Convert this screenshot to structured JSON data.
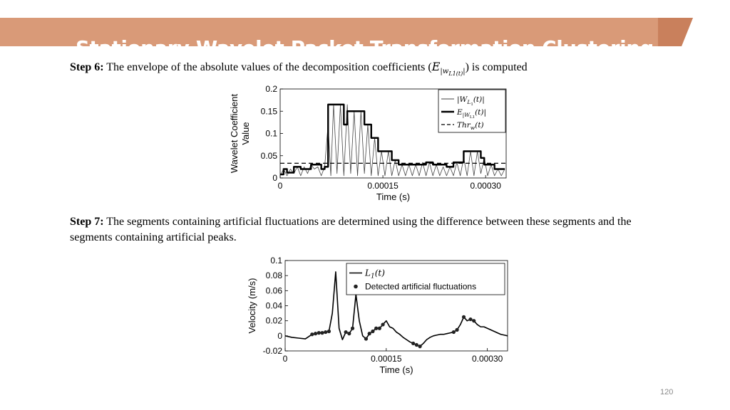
{
  "slide": {
    "title": "Stationary Wavelet Packet Transformation Clustering",
    "page_number": "120",
    "colors": {
      "banner": "#d99a78",
      "banner_dark": "#c9805c",
      "title_text": "#ffffff",
      "page_number": "#8a8a8a"
    }
  },
  "step6": {
    "label": "Step 6:",
    "text": " The envelope of the absolute values of the decomposition coefficients (",
    "symbol": "E",
    "subscript": "|w",
    "subsub": "L1(t)",
    "subscript_end": "|",
    "text_end": ") is computed"
  },
  "step7": {
    "label": "Step 7:",
    "text": " The segments containing artificial fluctuations are determined using the difference between these segments and the segments containing artificial peaks."
  },
  "chart_data": [
    {
      "type": "line",
      "ylabel": "Wavelet Coefficient Value",
      "xlabel": "Time (s)",
      "xlim": [
        0,
        0.00033
      ],
      "ylim": [
        0,
        0.2
      ],
      "xticks": [
        "0",
        "0.00015",
        "0.00030"
      ],
      "xtick_values": [
        0,
        0.00015,
        0.0003
      ],
      "yticks": [
        "0",
        "0.05",
        "0.1",
        "0.15",
        "0.2"
      ],
      "ytick_values": [
        0,
        0.05,
        0.1,
        0.15,
        0.2
      ],
      "legend_position": "top-right",
      "series": [
        {
          "name": "|W_L1(t)|",
          "legend": {
            "main": "|W",
            "sub": "L",
            "subsub": "1",
            "end": "(t)|"
          },
          "style": "thin",
          "x": [
            0,
            5e-06,
            1e-05,
            1.5e-05,
            2e-05,
            2.5e-05,
            3e-05,
            3.5e-05,
            4e-05,
            4.5e-05,
            5e-05,
            5.5e-05,
            6e-05,
            6.5e-05,
            7e-05,
            7.4e-05,
            7.8e-05,
            8.3e-05,
            8.8e-05,
            9.3e-05,
            9.8e-05,
            0.000103,
            0.000108,
            0.000113,
            0.000118,
            0.000123,
            0.000128,
            0.000133,
            0.000138,
            0.000143,
            0.000148,
            0.000153,
            0.000158,
            0.000163,
            0.000168,
            0.000173,
            0.000178,
            0.000183,
            0.000188,
            0.000193,
            0.000198,
            0.000203,
            0.000208,
            0.000213,
            0.000218,
            0.000223,
            0.000228,
            0.000233,
            0.000238,
            0.000243,
            0.000248,
            0.000253,
            0.000258,
            0.000263,
            0.000268,
            0.000273,
            0.000278,
            0.000283,
            0.000288,
            0.000293,
            0.000298,
            0.000303,
            0.000308,
            0.000313,
            0.000318,
            0.000323,
            0.000328
          ],
          "values": [
            0.005,
            0.02,
            0.005,
            0.02,
            0.01,
            0.025,
            0.005,
            0.025,
            0.01,
            0.03,
            0.02,
            0.025,
            0.005,
            0.025,
            0.12,
            0.005,
            0.165,
            0.01,
            0.165,
            0.005,
            0.165,
            0.01,
            0.15,
            0.005,
            0.15,
            0.01,
            0.12,
            0.005,
            0.09,
            0.005,
            0.06,
            0.005,
            0.06,
            0.005,
            0.04,
            0.005,
            0.03,
            0.005,
            0.03,
            0.005,
            0.03,
            0.005,
            0.035,
            0.005,
            0.035,
            0.005,
            0.03,
            0.005,
            0.025,
            0.005,
            0.025,
            0.005,
            0.035,
            0.005,
            0.045,
            0.005,
            0.06,
            0.005,
            0.06,
            0.01,
            0.045,
            0.005,
            0.03,
            0.005,
            0.02,
            0.005,
            0.02
          ]
        },
        {
          "name": "E_|W_L1(t)|",
          "legend": {
            "main": "E",
            "sub": "|W",
            "subsub": "L1",
            "end": "(t)|"
          },
          "style": "thick",
          "x": [
            0,
            5e-06,
            5e-06,
            1e-05,
            1e-05,
            2e-05,
            2e-05,
            3e-05,
            3e-05,
            4.5e-05,
            4.5e-05,
            6e-05,
            6e-05,
            6.5e-05,
            6.5e-05,
            7e-05,
            7e-05,
            7.8e-05,
            7.8e-05,
            9.3e-05,
            9.3e-05,
            9.8e-05,
            9.8e-05,
            0.000123,
            0.000123,
            0.000133,
            0.000133,
            0.000143,
            0.000143,
            0.000153,
            0.000153,
            0.000163,
            0.000163,
            0.000173,
            0.000173,
            0.000213,
            0.000213,
            0.000223,
            0.000223,
            0.000243,
            0.000243,
            0.000253,
            0.000253,
            0.000268,
            0.000268,
            0.000283,
            0.000283,
            0.000293,
            0.000293,
            0.000298,
            0.000298,
            0.000313,
            0.000313,
            0.000328
          ],
          "values": [
            0.008,
            0.008,
            0.02,
            0.02,
            0.012,
            0.012,
            0.025,
            0.025,
            0.02,
            0.02,
            0.03,
            0.03,
            0.02,
            0.02,
            0.025,
            0.025,
            0.165,
            0.165,
            0.165,
            0.165,
            0.12,
            0.12,
            0.15,
            0.15,
            0.12,
            0.12,
            0.09,
            0.09,
            0.06,
            0.06,
            0.06,
            0.06,
            0.04,
            0.04,
            0.03,
            0.03,
            0.035,
            0.035,
            0.03,
            0.03,
            0.025,
            0.025,
            0.035,
            0.035,
            0.06,
            0.06,
            0.06,
            0.06,
            0.045,
            0.045,
            0.03,
            0.03,
            0.02,
            0.02
          ]
        },
        {
          "name": "Thr_w(t)",
          "legend": {
            "main": "Thr",
            "sub": "w",
            "subsub": "",
            "end": "(t)"
          },
          "style": "dashed",
          "x": [
            0,
            0.00033
          ],
          "values": [
            0.033,
            0.033
          ]
        }
      ]
    },
    {
      "type": "line",
      "ylabel": "Velocity (m/s)",
      "xlabel": "Time (s)",
      "xlim": [
        0,
        0.00033
      ],
      "ylim": [
        -0.02,
        0.1
      ],
      "xticks": [
        "0",
        "0.00015",
        "0.00030"
      ],
      "xtick_values": [
        0,
        0.00015,
        0.0003
      ],
      "yticks": [
        "-0.02",
        "0",
        "0.02",
        "0.04",
        "0.06",
        "0.08",
        "0.1"
      ],
      "ytick_values": [
        -0.02,
        0,
        0.02,
        0.04,
        0.06,
        0.08,
        0.1
      ],
      "legend_position": "top-right",
      "series": [
        {
          "name": "L1(t)",
          "legend": {
            "main": "L",
            "sub": "1",
            "end": "(t)"
          },
          "style": "line",
          "x": [
            0,
            1e-05,
            2e-05,
            3e-05,
            4e-05,
            5e-05,
            6e-05,
            6.5e-05,
            7e-05,
            7.5e-05,
            8e-05,
            8.5e-05,
            9e-05,
            9.5e-05,
            0.0001,
            0.000105,
            0.00011,
            0.000115,
            0.00012,
            0.000125,
            0.00013,
            0.000135,
            0.00014,
            0.000145,
            0.00015,
            0.000155,
            0.00016,
            0.000165,
            0.00017,
            0.000175,
            0.00018,
            0.000185,
            0.00019,
            0.000195,
            0.0002,
            0.000205,
            0.00021,
            0.000215,
            0.00022,
            0.000225,
            0.00023,
            0.000235,
            0.00024,
            0.000245,
            0.00025,
            0.000255,
            0.00026,
            0.000265,
            0.00027,
            0.000275,
            0.00028,
            0.000285,
            0.00029,
            0.000295,
            0.0003,
            0.000305,
            0.00031,
            0.000315,
            0.00032,
            0.000325,
            0.00033
          ],
          "values": [
            0,
            -0.002,
            -0.003,
            -0.004,
            0.002,
            0.004,
            0.005,
            0.006,
            0.03,
            0.085,
            0.01,
            -0.005,
            0.005,
            0.003,
            0.01,
            0.055,
            0.02,
            0.0,
            -0.004,
            0.003,
            0.006,
            0.01,
            0.01,
            0.015,
            0.02,
            0.012,
            0.01,
            0.005,
            0.002,
            -0.002,
            -0.005,
            -0.008,
            -0.01,
            -0.012,
            -0.014,
            -0.01,
            -0.005,
            -0.002,
            0,
            0.001,
            0.002,
            0.002,
            0.003,
            0.004,
            0.005,
            0.008,
            0.015,
            0.025,
            0.02,
            0.022,
            0.02,
            0.015,
            0.012,
            0.012,
            0.01,
            0.008,
            0.006,
            0.004,
            0.002,
            0.001,
            0.0
          ]
        },
        {
          "name": "Detected artificial fluctuations",
          "legend": {
            "main": "Detected artificial fluctuations"
          },
          "style": "markers",
          "x": [
            4e-05,
            4.5e-05,
            5e-05,
            5.5e-05,
            6e-05,
            6.5e-05,
            9e-05,
            9.5e-05,
            0.0001,
            0.00012,
            0.000125,
            0.00013,
            0.000135,
            0.00014,
            0.000145,
            0.00019,
            0.000195,
            0.0002,
            0.00025,
            0.000255,
            0.000265,
            0.000275,
            0.00028
          ],
          "values": [
            0.002,
            0.003,
            0.004,
            0.004,
            0.005,
            0.006,
            0.005,
            0.003,
            0.01,
            -0.004,
            0.003,
            0.006,
            0.01,
            0.01,
            0.015,
            -0.01,
            -0.012,
            -0.014,
            0.005,
            0.008,
            0.025,
            0.022,
            0.02
          ]
        }
      ]
    }
  ]
}
